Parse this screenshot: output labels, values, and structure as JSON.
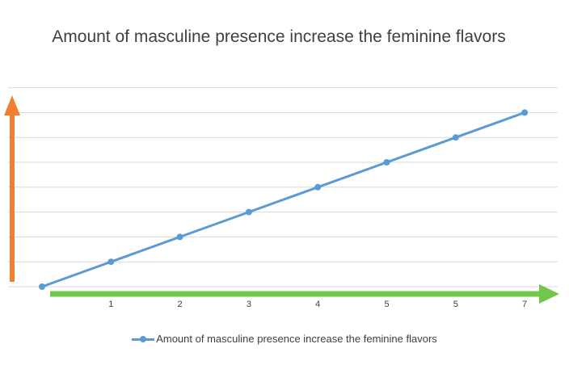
{
  "chart_data": {
    "type": "line",
    "title": "Amount of masculine presence increase the feminine flavors",
    "xlabel": "",
    "ylabel": "",
    "categories": [
      "",
      "1",
      "2",
      "3",
      "4",
      "5",
      "5",
      "7"
    ],
    "series": [
      {
        "name": "Amount of masculine presence increase the feminine flavors",
        "values": [
          0,
          1,
          2,
          3,
          4,
          5,
          6,
          7
        ],
        "color": "#5b9bd5"
      }
    ],
    "ylim": [
      0,
      8
    ],
    "y_ticks_labeled": false,
    "grid": true,
    "legend_position": "bottom",
    "annotations": {
      "y_arrow_color": "#f07f32",
      "x_arrow_color": "#70c84a"
    }
  }
}
